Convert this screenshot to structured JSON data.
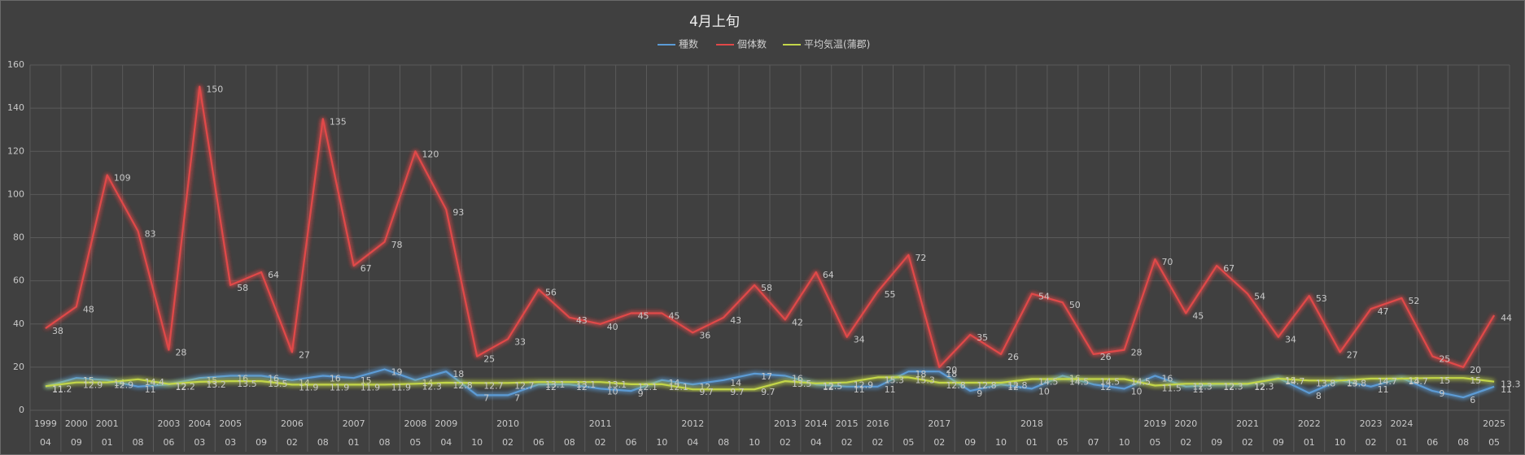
{
  "chart_data": {
    "type": "line",
    "title": "4月上旬",
    "categories": [
      "04",
      "09",
      "01",
      "08",
      "06",
      "03",
      "03",
      "09",
      "02",
      "08",
      "01",
      "08",
      "05",
      "04",
      "10",
      "02",
      "06",
      "08",
      "02",
      "06",
      "10",
      "04",
      "08",
      "10",
      "02",
      "04",
      "02",
      "02",
      "05",
      "02",
      "09",
      "10",
      "01",
      "05",
      "07",
      "10",
      "05",
      "02",
      "09",
      "02",
      "09",
      "01",
      "10",
      "02",
      "01",
      "06",
      "08",
      "05"
    ],
    "category_groups": [
      "1999",
      "2000",
      "2001",
      null,
      "2003",
      "2004",
      "2005",
      null,
      "2006",
      null,
      "2007",
      null,
      "2008",
      "2009",
      null,
      "2010",
      null,
      null,
      "2011",
      null,
      null,
      "2012",
      null,
      null,
      "2013",
      "2014",
      "2015",
      "2016",
      null,
      "2017",
      null,
      null,
      "2018",
      null,
      null,
      null,
      "2019",
      "2020",
      null,
      "2021",
      null,
      "2022",
      null,
      "2023",
      "2024",
      null,
      null,
      "2025"
    ],
    "series": [
      {
        "name": "種数",
        "color": "#5b9bd5",
        "values": [
          11,
          15,
          14,
          11,
          12,
          15,
          16,
          16,
          14,
          16,
          15,
          19,
          14,
          18,
          7,
          7,
          12,
          12,
          10,
          9,
          14,
          12,
          14,
          17,
          16,
          12,
          11,
          11,
          18,
          18,
          9,
          12,
          10,
          16,
          12,
          10,
          16,
          11,
          12,
          12,
          15,
          8,
          14,
          11,
          15,
          9,
          6,
          11
        ]
      },
      {
        "name": "個体数",
        "color": "#e04848",
        "values": [
          38,
          48,
          109,
          83,
          28,
          150,
          58,
          64,
          27,
          135,
          67,
          78,
          120,
          93,
          25,
          33,
          56,
          43,
          40,
          45,
          45,
          36,
          43,
          58,
          42,
          64,
          34,
          55,
          72,
          20,
          35,
          26,
          54,
          50,
          26,
          28,
          70,
          45,
          67,
          54,
          34,
          53,
          27,
          47,
          52,
          25,
          20,
          44
        ]
      },
      {
        "name": "平均気温(蒲郡)",
        "color": "#c3d64a",
        "values": [
          11.2,
          12.9,
          12.9,
          14.4,
          12.2,
          13.2,
          13.5,
          13.5,
          11.9,
          11.9,
          11.9,
          11.9,
          12.3,
          12.8,
          12.7,
          12.7,
          13.1,
          13.1,
          13.1,
          12.1,
          12.1,
          9.7,
          9.7,
          9.7,
          13.5,
          12.5,
          12.9,
          15.3,
          15.3,
          12.8,
          12.8,
          12.8,
          14.5,
          14.5,
          14.5,
          14.5,
          11.5,
          12.3,
          12.3,
          12.3,
          14.7,
          13.8,
          13.8,
          14.7,
          14.7,
          15,
          15,
          13.3
        ]
      }
    ],
    "ylim": [
      0,
      160
    ],
    "yticks": [
      0,
      20,
      40,
      60,
      80,
      100,
      120,
      140,
      160
    ],
    "grid": true,
    "legend": "top"
  }
}
